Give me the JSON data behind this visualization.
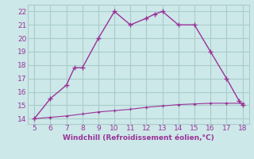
{
  "xlabel": "Windchill (Refroidissement éolien,°C)",
  "x_main": [
    5,
    6,
    7,
    7.5,
    8,
    9,
    10,
    11,
    12,
    12.5,
    13,
    14,
    15,
    16,
    17,
    17.8,
    18
  ],
  "y_main": [
    14,
    15.5,
    16.5,
    17.8,
    17.8,
    20,
    22,
    21,
    21.5,
    21.8,
    22,
    21,
    21,
    19,
    17,
    15.3,
    15
  ],
  "x_bottom": [
    5,
    6,
    7,
    8,
    9,
    10,
    11,
    12,
    13,
    14,
    15,
    16,
    17,
    18
  ],
  "y_bottom": [
    14,
    14.1,
    14.2,
    14.35,
    14.5,
    14.6,
    14.7,
    14.85,
    14.95,
    15.05,
    15.1,
    15.15,
    15.15,
    15.15
  ],
  "line_color": "#993399",
  "bg_color": "#cce8e8",
  "grid_color": "#aacccc",
  "text_color": "#993399",
  "xlim": [
    4.6,
    18.4
  ],
  "ylim": [
    13.6,
    22.5
  ],
  "xticks": [
    5,
    6,
    7,
    8,
    9,
    10,
    11,
    12,
    13,
    14,
    15,
    16,
    17,
    18
  ],
  "yticks": [
    14,
    15,
    16,
    17,
    18,
    19,
    20,
    21,
    22
  ],
  "tick_fontsize": 6.5,
  "xlabel_fontsize": 6.5
}
